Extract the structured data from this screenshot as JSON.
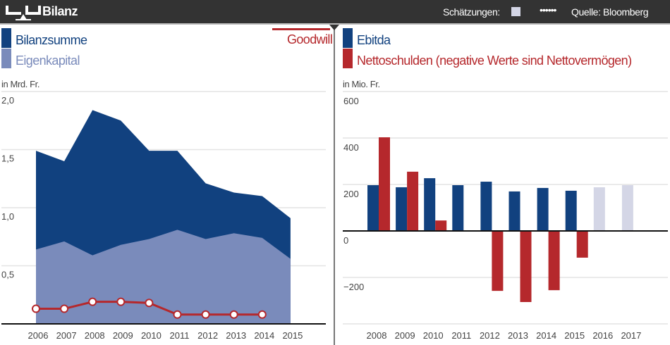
{
  "header": {
    "title": "Bilanz",
    "estimates_label": "Schätzungen:",
    "dots": "••••••",
    "source": "Quelle: Bloomberg",
    "logo_icon": "balance-scale-icon"
  },
  "colors": {
    "bilanzsumme": "#11417f",
    "eigenkapital": "#7a8bbb",
    "goodwill": "#b5282c",
    "ebitda": "#11417f",
    "nettoschulden": "#b5282c",
    "estimate": "#d4d6e6"
  },
  "chart_data": [
    {
      "type": "area",
      "unit_label": "in Mrd. Fr.",
      "x": [
        "2006",
        "2007",
        "2008",
        "2009",
        "2010",
        "2011",
        "2012",
        "2013",
        "2014",
        "2015"
      ],
      "ylim": [
        0,
        2.0
      ],
      "yticks": [
        "0,5",
        "1,0",
        "1,5",
        "2,0"
      ],
      "yticks_values": [
        0.5,
        1.0,
        1.5,
        2.0
      ],
      "grid": true,
      "series": [
        {
          "name": "Bilanzsumme",
          "type": "area",
          "values": [
            1.49,
            1.4,
            1.84,
            1.75,
            1.49,
            1.49,
            1.21,
            1.13,
            1.1,
            0.91
          ]
        },
        {
          "name": "Eigenkapital",
          "type": "area",
          "values": [
            0.64,
            0.71,
            0.59,
            0.68,
            0.73,
            0.81,
            0.73,
            0.78,
            0.74,
            0.56
          ]
        },
        {
          "name": "Goodwill",
          "type": "line",
          "values": [
            0.13,
            0.13,
            0.19,
            0.19,
            0.18,
            0.08,
            0.08,
            0.08,
            0.08,
            null
          ]
        }
      ]
    },
    {
      "type": "bar",
      "unit_label": "in Mio. Fr.",
      "categories": [
        "2008",
        "2009",
        "2010",
        "2011",
        "2012",
        "2013",
        "2014",
        "2015",
        "2016",
        "2017"
      ],
      "ylim": [
        -400,
        600
      ],
      "yticks": [
        "−200",
        "0",
        "200",
        "400",
        "600"
      ],
      "yticks_values": [
        -200,
        0,
        200,
        400,
        600
      ],
      "grid": true,
      "estimate_categories": [
        "2016",
        "2017"
      ],
      "series": [
        {
          "name": "Ebitda",
          "values": [
            197,
            188,
            227,
            197,
            212,
            170,
            185,
            173,
            188,
            197
          ]
        },
        {
          "name": "Nettoschulden (negative Werte sind Nettovermögen)",
          "values": [
            403,
            255,
            45,
            null,
            -258,
            -306,
            -255,
            -115,
            null,
            null
          ]
        }
      ]
    }
  ]
}
